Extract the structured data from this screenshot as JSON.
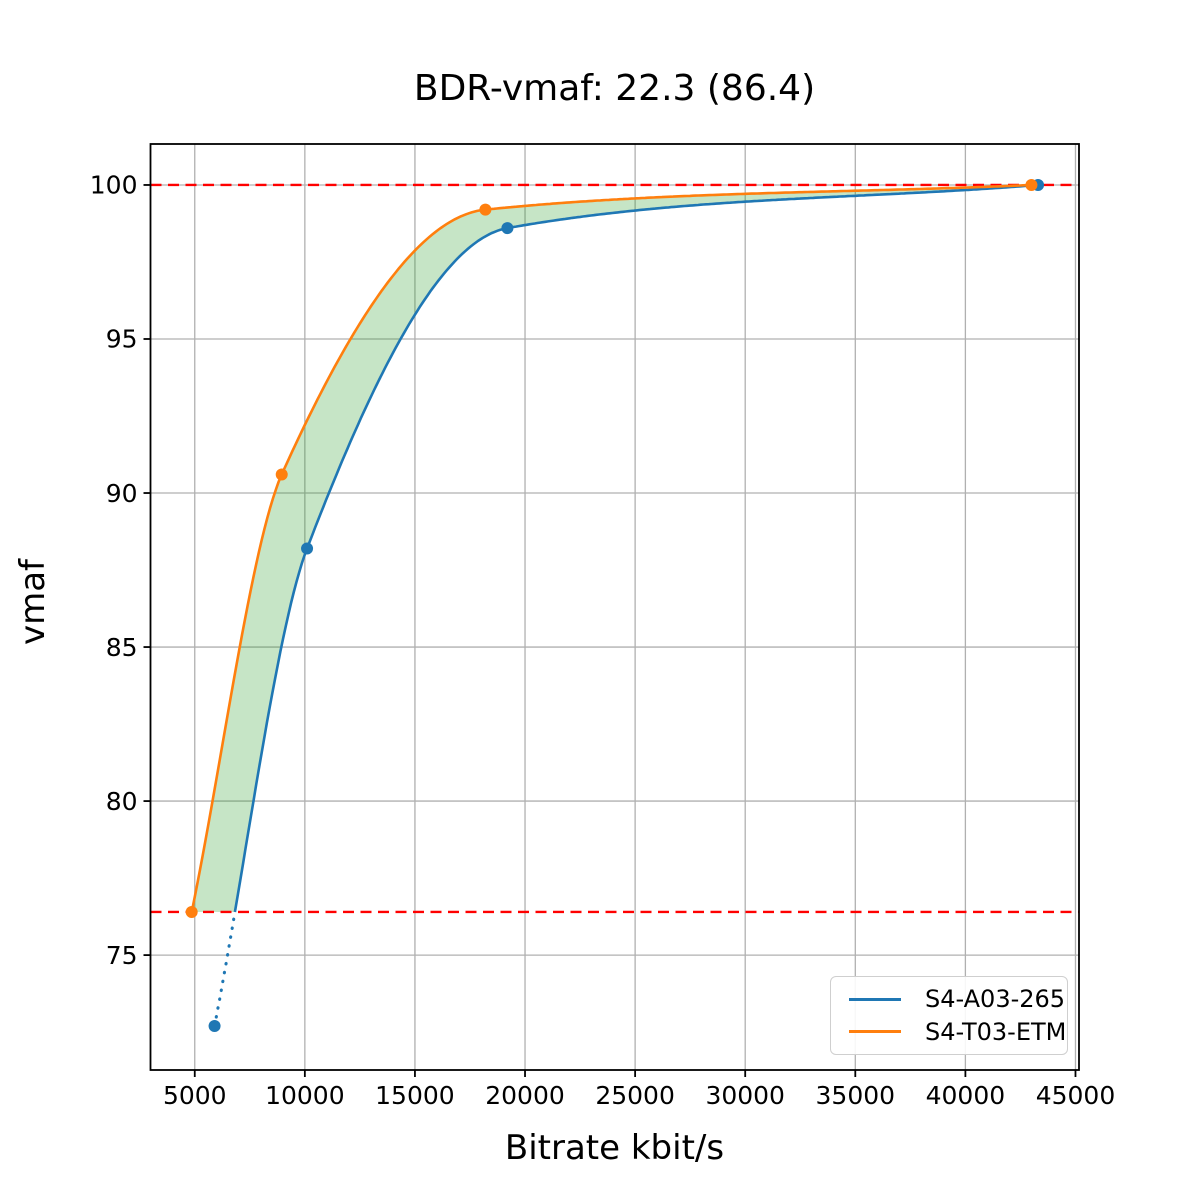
{
  "chart_data": {
    "type": "line",
    "title": "BDR-vmaf: 22.3 (86.4)",
    "xlabel": "Bitrate kbit/s",
    "ylabel": "vmaf",
    "xlim": [
      2990,
      45160
    ],
    "ylim": [
      71.27,
      101.33
    ],
    "xticks": [
      5000,
      10000,
      15000,
      20000,
      25000,
      30000,
      35000,
      40000,
      45000
    ],
    "yticks": [
      75,
      80,
      85,
      90,
      95,
      100
    ],
    "grid": true,
    "grid_color": "#b0b0b0",
    "spine_color": "#000000",
    "legend_position": "lower right",
    "series": [
      {
        "name": "S4-A03-265",
        "color": "#1f77b4",
        "marker": "circle",
        "x": [
          5900,
          10100,
          19200,
          43300
        ],
        "y": [
          72.7,
          88.2,
          98.6,
          100.0
        ],
        "style_below_band": "dotted"
      },
      {
        "name": "S4-T03-ETM",
        "color": "#ff7f0e",
        "marker": "circle",
        "x": [
          4860,
          8950,
          18200,
          43000
        ],
        "y": [
          76.4,
          90.6,
          99.2,
          100.0
        ],
        "style_below_band": "solid"
      }
    ],
    "reference_lines": [
      {
        "axis": "y",
        "value": 100.0,
        "style": "dashed",
        "color": "#ff0000"
      },
      {
        "axis": "y",
        "value": 76.4,
        "style": "dashed",
        "color": "#ff0000"
      }
    ],
    "band": {
      "between": [
        "S4-T03-ETM",
        "S4-A03-265"
      ],
      "y_range": [
        76.4,
        100.0
      ],
      "color": "#2ca02c",
      "opacity": 0.27
    }
  }
}
